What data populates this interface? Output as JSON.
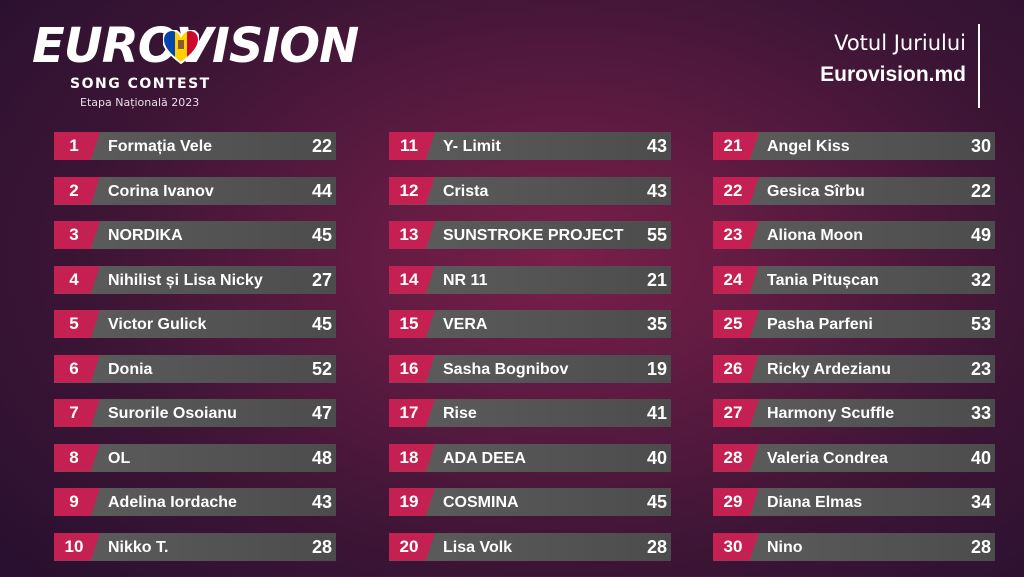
{
  "logo": {
    "wordmark": "EUROVISION",
    "subtitle": "SONG CONTEST",
    "edition": "Etapa Națională 2023",
    "heart_colors": [
      "#0046ae",
      "#ffd200",
      "#cc092f"
    ]
  },
  "header": {
    "title": "Votul Juriului",
    "site": "Eurovision.md"
  },
  "colors": {
    "rank_accent": "#c42152",
    "row_background": "#555555",
    "background": "#5a1a40"
  },
  "columns": [
    [
      {
        "rank": "1",
        "name": "Formația Vele",
        "points": "22"
      },
      {
        "rank": "2",
        "name": "Corina Ivanov",
        "points": "44"
      },
      {
        "rank": "3",
        "name": "NORDIKA",
        "points": "45"
      },
      {
        "rank": "4",
        "name": "Nihilist și Lisa Nicky",
        "points": "27"
      },
      {
        "rank": "5",
        "name": "Victor Gulick",
        "points": "45"
      },
      {
        "rank": "6",
        "name": "Donia",
        "points": "52"
      },
      {
        "rank": "7",
        "name": "Surorile Osoianu",
        "points": "47"
      },
      {
        "rank": "8",
        "name": "OL",
        "points": "48"
      },
      {
        "rank": "9",
        "name": "Adelina Iordache",
        "points": "43"
      },
      {
        "rank": "10",
        "name": "Nikko T.",
        "points": "28"
      }
    ],
    [
      {
        "rank": "11",
        "name": "Y- Limit",
        "points": "43"
      },
      {
        "rank": "12",
        "name": "Crista",
        "points": "43"
      },
      {
        "rank": "13",
        "name": "SUNSTROKE PROJECT",
        "points": "55"
      },
      {
        "rank": "14",
        "name": "NR 11",
        "points": "21"
      },
      {
        "rank": "15",
        "name": "VERA",
        "points": "35"
      },
      {
        "rank": "16",
        "name": "Sasha Bognibov",
        "points": "19"
      },
      {
        "rank": "17",
        "name": "Rise",
        "points": "41"
      },
      {
        "rank": "18",
        "name": "ADA DEEA",
        "points": "40"
      },
      {
        "rank": "19",
        "name": "COSMINA",
        "points": "45"
      },
      {
        "rank": "20",
        "name": "Lisa Volk",
        "points": "28"
      }
    ],
    [
      {
        "rank": "21",
        "name": "Angel Kiss",
        "points": "30"
      },
      {
        "rank": "22",
        "name": "Gesica Sîrbu",
        "points": "22"
      },
      {
        "rank": "23",
        "name": "Aliona Moon",
        "points": "49"
      },
      {
        "rank": "24",
        "name": "Tania Pitușcan",
        "points": "32"
      },
      {
        "rank": "25",
        "name": "Pasha Parfeni",
        "points": "53"
      },
      {
        "rank": "26",
        "name": "Ricky Ardezianu",
        "points": "23"
      },
      {
        "rank": "27",
        "name": "Harmony Scuffle",
        "points": "33"
      },
      {
        "rank": "28",
        "name": "Valeria Condrea",
        "points": "40"
      },
      {
        "rank": "29",
        "name": "Diana Elmas",
        "points": "34"
      },
      {
        "rank": "30",
        "name": "Nino",
        "points": "28"
      }
    ]
  ]
}
